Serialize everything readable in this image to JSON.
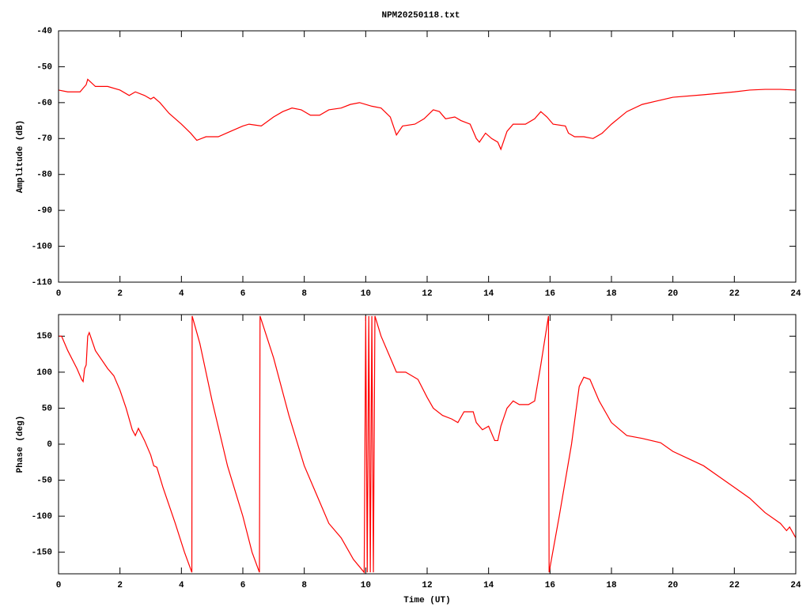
{
  "chart_data": [
    {
      "type": "line",
      "title": "NPM20250118.txt",
      "ylabel": "Amplitude (dB)",
      "xlim": [
        0,
        24
      ],
      "xticks": [
        0,
        2,
        4,
        6,
        8,
        10,
        12,
        14,
        16,
        18,
        20,
        22,
        24
      ],
      "ylim": [
        -110,
        -40
      ],
      "yticks": [
        -110,
        -100,
        -90,
        -80,
        -70,
        -60,
        -50,
        -40
      ],
      "x": [
        0,
        0.3,
        0.7,
        0.9,
        0.95,
        1.2,
        1.6,
        2.0,
        2.3,
        2.5,
        2.8,
        3.0,
        3.1,
        3.3,
        3.6,
        4.0,
        4.3,
        4.5,
        4.8,
        5.2,
        5.6,
        6.0,
        6.2,
        6.6,
        7.0,
        7.3,
        7.6,
        7.9,
        8.2,
        8.5,
        8.8,
        9.2,
        9.5,
        9.8,
        10.2,
        10.5,
        10.8,
        11.0,
        11.2,
        11.6,
        11.9,
        12.2,
        12.4,
        12.6,
        12.9,
        13.1,
        13.4,
        13.6,
        13.7,
        13.9,
        14.1,
        14.3,
        14.4,
        14.6,
        14.8,
        15.2,
        15.5,
        15.7,
        15.9,
        16.1,
        16.5,
        16.6,
        16.8,
        17.1,
        17.4,
        17.7,
        18.0,
        18.5,
        19.0,
        19.5,
        20.0,
        21.0,
        22.0,
        22.5,
        23.0,
        23.5,
        24.0
      ],
      "series": [
        {
          "color": "#ff0000",
          "values": [
            -56.5,
            -57,
            -57,
            -55,
            -53.5,
            -55.5,
            -55.5,
            -56.5,
            -58,
            -57,
            -58,
            -59,
            -58.5,
            -60,
            -63,
            -66,
            -68.5,
            -70.5,
            -69.5,
            -69.5,
            -68,
            -66.5,
            -66,
            -66.5,
            -64,
            -62.5,
            -61.5,
            -62,
            -63.5,
            -63.5,
            -62,
            -61.5,
            -60.5,
            -60,
            -61,
            -61.5,
            -64,
            -69,
            -66.5,
            -66,
            -64.5,
            -62,
            -62.5,
            -64.5,
            -64,
            -65,
            -66,
            -70,
            -71,
            -68.5,
            -70,
            -71,
            -73,
            -68,
            -66,
            -66,
            -64.5,
            -62.5,
            -64,
            -66,
            -66.5,
            -68.5,
            -69.5,
            -69.5,
            -70,
            -68.5,
            -66,
            -62.5,
            -60.5,
            -59.5,
            -58.5,
            -57.8,
            -57,
            -56.5,
            -56.3,
            -56.3,
            -56.5
          ]
        }
      ]
    },
    {
      "type": "line",
      "ylabel": "Phase (deg)",
      "xlabel": "Time (UT)",
      "xlim": [
        0,
        24
      ],
      "xticks": [
        0,
        2,
        4,
        6,
        8,
        10,
        12,
        14,
        16,
        18,
        20,
        22,
        24
      ],
      "ylim": [
        -180,
        180
      ],
      "yticks": [
        -150,
        -100,
        -50,
        0,
        50,
        100,
        150
      ],
      "x": [
        0,
        0.1,
        0.3,
        0.6,
        0.75,
        0.8,
        0.85,
        0.9,
        0.95,
        1.0,
        1.2,
        1.6,
        1.8,
        2.0,
        2.2,
        2.4,
        2.5,
        2.6,
        2.8,
        3.0,
        3.1,
        3.2,
        3.4,
        3.8,
        4.1,
        4.34,
        4.35,
        4.6,
        5.0,
        5.5,
        6.0,
        6.3,
        6.54,
        6.56,
        7.0,
        7.5,
        8.0,
        8.4,
        8.8,
        9.2,
        9.6,
        9.95,
        10.0,
        10.05,
        10.1,
        10.15,
        10.2,
        10.25,
        10.3,
        10.5,
        10.8,
        11.0,
        11.3,
        11.7,
        12.0,
        12.2,
        12.5,
        12.8,
        13.0,
        13.2,
        13.5,
        13.6,
        13.8,
        14.0,
        14.2,
        14.3,
        14.4,
        14.6,
        14.8,
        15.0,
        15.3,
        15.5,
        15.7,
        15.95,
        15.97,
        16.3,
        16.7,
        16.95,
        17.1,
        17.3,
        17.6,
        18.0,
        18.5,
        19.0,
        19.6,
        20.0,
        20.5,
        21.0,
        21.5,
        22.0,
        22.5,
        23.0,
        23.5,
        23.7,
        23.8,
        24.0
      ],
      "series": [
        {
          "color": "#ff0000",
          "values": [
            150,
            150,
            130,
            105,
            90,
            87,
            105,
            110,
            150,
            155,
            130,
            105,
            95,
            75,
            50,
            20,
            12,
            22,
            5,
            -15,
            -30,
            -32,
            -60,
            -110,
            -150,
            -178,
            178,
            140,
            60,
            -30,
            -100,
            -150,
            -178,
            178,
            120,
            40,
            -30,
            -70,
            -110,
            -130,
            -160,
            -178,
            178,
            -178,
            178,
            -178,
            178,
            -178,
            178,
            150,
            120,
            100,
            100,
            90,
            65,
            50,
            40,
            35,
            30,
            45,
            45,
            30,
            20,
            25,
            5,
            5,
            25,
            50,
            60,
            55,
            55,
            60,
            110,
            178,
            -178,
            -100,
            0,
            80,
            93,
            90,
            60,
            30,
            12,
            8,
            2,
            -10,
            -20,
            -30,
            -45,
            -60,
            -75,
            -95,
            -110,
            -120,
            -115,
            -130
          ]
        }
      ]
    }
  ]
}
